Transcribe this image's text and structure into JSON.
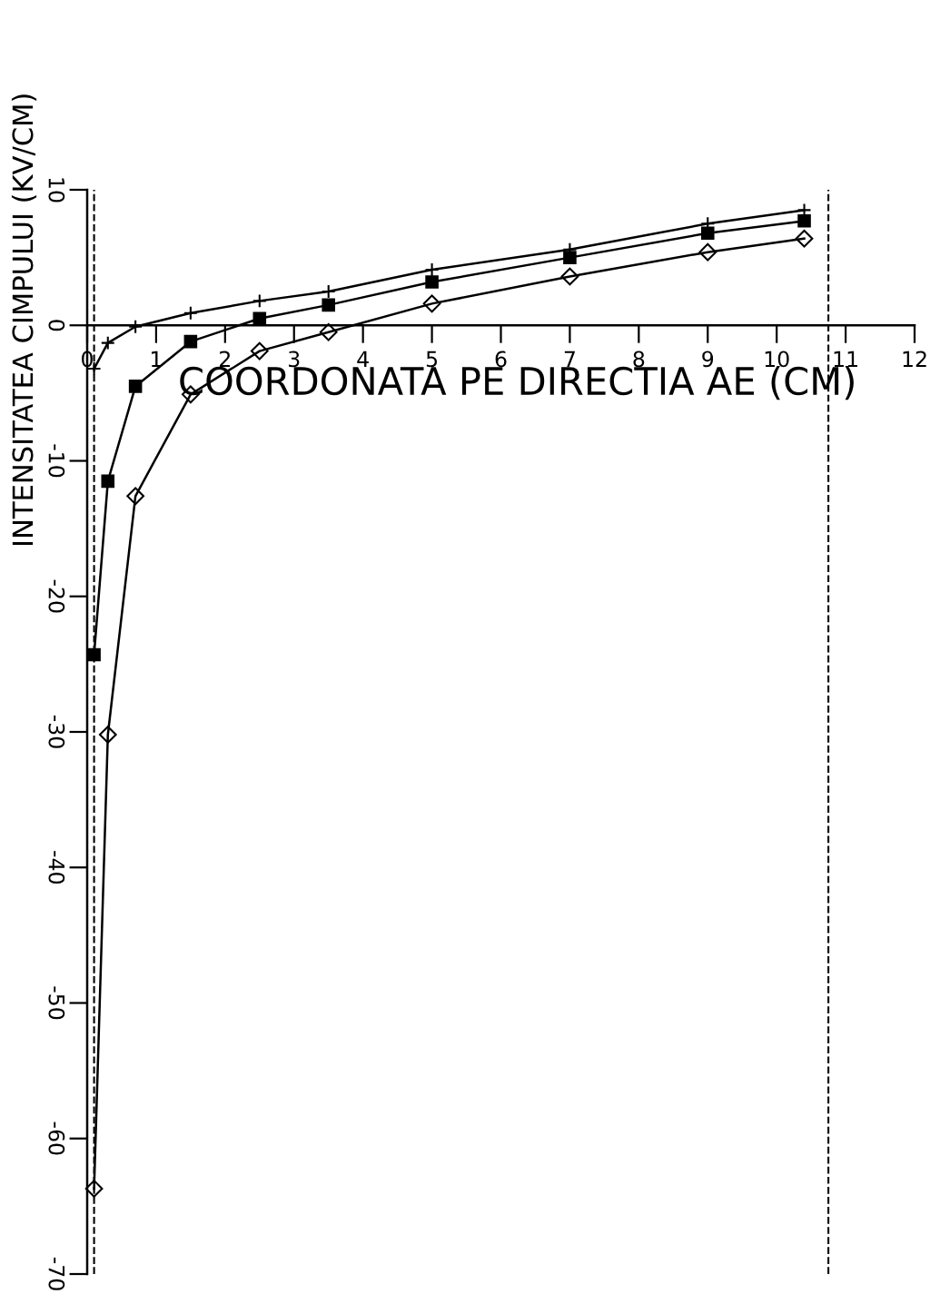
{
  "chart_data": {
    "type": "line",
    "xlabel": "COORDONATA PE DIRECTIA AE (CM)",
    "ylabel": "INTENSITATEA CIMPULUI (KV/CM)",
    "xlim": [
      0,
      12
    ],
    "xticks": [
      0,
      1,
      2,
      3,
      4,
      5,
      6,
      7,
      8,
      9,
      10,
      11,
      12
    ],
    "ylim": [
      -70,
      10
    ],
    "yticks": [
      -70,
      -60,
      -50,
      -40,
      -30,
      -20,
      -10,
      0,
      10
    ],
    "grid": false,
    "line_style": "solid",
    "series": [
      {
        "color": "#000000",
        "marker": "cross",
        "x": [
          0.1,
          0.3,
          0.7,
          1.5,
          2.5,
          3.5,
          5,
          7,
          9,
          10.4
        ],
        "values": [
          -3.2,
          -1.3,
          -0.1,
          0.9,
          1.8,
          2.5,
          4.1,
          5.6,
          7.5,
          8.5
        ]
      },
      {
        "color": "#000000",
        "marker": "square",
        "x": [
          0.1,
          0.3,
          0.7,
          1.5,
          2.5,
          3.5,
          5,
          7,
          9,
          10.4
        ],
        "values": [
          -24.3,
          -11.5,
          -4.5,
          -1.2,
          0.5,
          1.5,
          3.2,
          5.0,
          6.8,
          7.7
        ]
      },
      {
        "color": "#000000",
        "marker": "diamond",
        "x": [
          0.1,
          0.3,
          0.7,
          1.5,
          2.5,
          3.5,
          5,
          7,
          9,
          10.4
        ],
        "values": [
          -63.7,
          -30.2,
          -12.6,
          -5.1,
          -1.9,
          -0.5,
          1.6,
          3.6,
          5.4,
          6.4
        ]
      }
    ],
    "ref_lines": [
      {
        "axis": "x",
        "value": 0.1,
        "line_style": "dashed",
        "color": "#000000"
      },
      {
        "axis": "x",
        "value": 10.75,
        "line_style": "dashed",
        "color": "#000000"
      }
    ]
  }
}
